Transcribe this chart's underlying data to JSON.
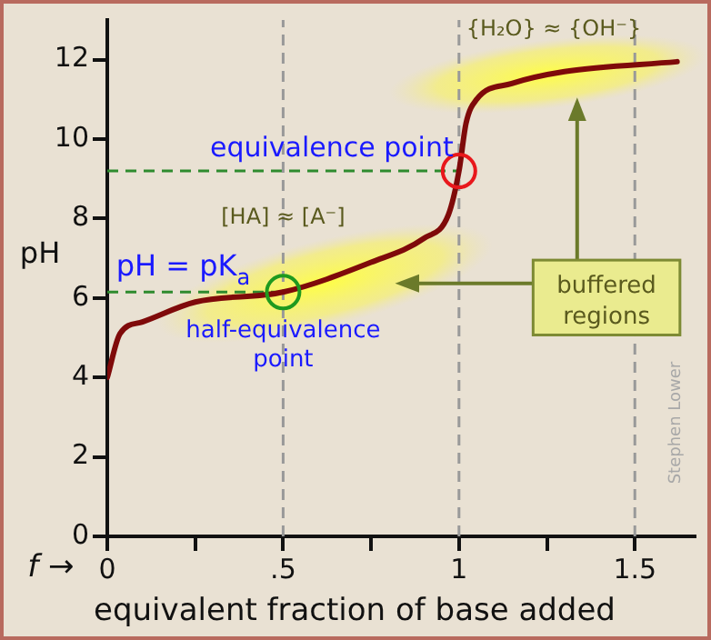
{
  "chart_data": {
    "type": "line",
    "xlabel": "equivalent fraction of base added",
    "ylabel": "pH",
    "x": [
      0,
      0.036,
      0.1,
      0.25,
      0.5,
      0.75,
      0.9,
      0.97,
      1,
      1.02,
      1.05,
      1.15,
      1.3,
      1.62
    ],
    "series": [
      {
        "color": "#7f0a0a",
        "values": [
          4,
          5.1,
          5.4,
          5.9,
          6.15,
          6.9,
          7.5,
          8.1,
          9.2,
          10.4,
          11,
          11.4,
          11.7,
          11.95
        ]
      }
    ],
    "xlim": [
      0,
      1.67
    ],
    "xticks": [
      0,
      {
        "value": 0.25,
        "label": null
      },
      {
        "value": 0.5,
        "label": ".5"
      },
      {
        "value": 0.75,
        "label": null
      },
      1,
      {
        "value": 1.25,
        "label": null
      },
      1.5
    ],
    "ylim": [
      0,
      13
    ],
    "yticks": [
      0,
      2,
      4,
      6,
      8,
      10,
      12
    ],
    "ref_lines": [
      {
        "axis": "y",
        "value": 9.2,
        "color": "#2e8b2e",
        "line_style": "dashed",
        "label": "equivalence point"
      },
      {
        "axis": "y",
        "value": 6.15,
        "color": "#2e8b2e",
        "line_style": "dashed",
        "label": "pH = pK$_{a}$"
      },
      {
        "axis": "x",
        "value": 0.5,
        "color": "#999999",
        "line_style": "dashed",
        "label": "half-equivalence point"
      },
      {
        "axis": "x",
        "value": 1,
        "color": "#999999",
        "line_style": "dashed"
      },
      {
        "axis": "x",
        "value": 1.5,
        "color": "#999999",
        "line_style": "dashed"
      }
    ],
    "annotations": [
      "[HA] ≈ [A⁻]",
      "{H₂O} ≈ {OH⁻}",
      "buffered regions",
      "f →",
      "Stephen Lower"
    ],
    "grid": false,
    "legend": false,
    "marker": "none",
    "line_style": "solid"
  }
}
